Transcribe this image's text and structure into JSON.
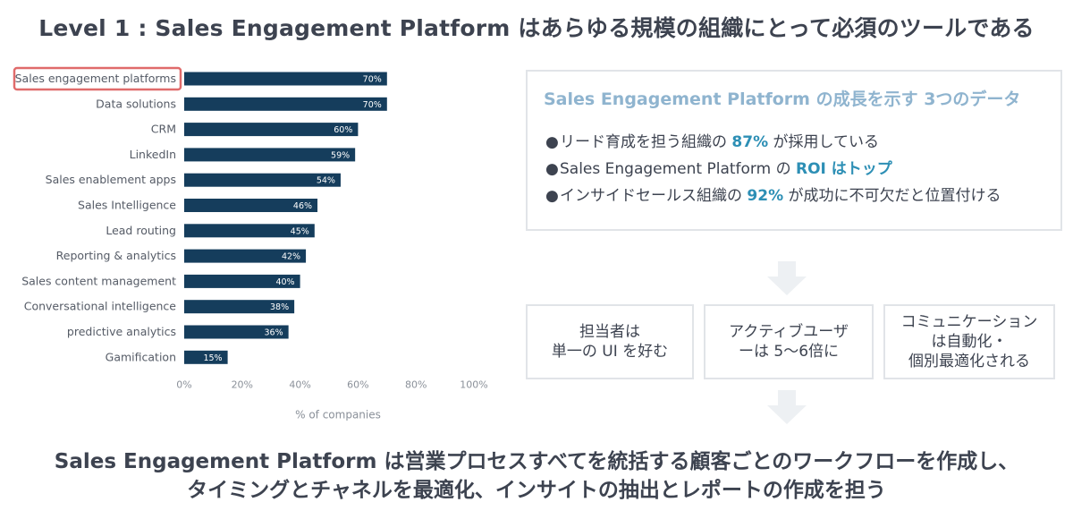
{
  "header": {
    "title": "Level 1 : Sales Engagement Platform はあらゆる規模の組織にとって必須のツールである"
  },
  "chart_data": {
    "type": "bar",
    "orientation": "horizontal",
    "categories": [
      "Sales engagement platforms",
      "Data solutions",
      "CRM",
      "LinkedIn",
      "Sales enablement apps",
      "Sales Intelligence",
      "Lead routing",
      "Reporting & analytics",
      "Sales content management",
      "Conversational intelligence",
      "predictive analytics",
      "Gamification"
    ],
    "values": [
      70,
      70,
      60,
      59,
      54,
      46,
      45,
      42,
      40,
      38,
      36,
      15
    ],
    "value_labels": [
      "70%",
      "70%",
      "60%",
      "59%",
      "54%",
      "46%",
      "45%",
      "42%",
      "40%",
      "38%",
      "36%",
      "15%"
    ],
    "xlim": [
      0,
      100
    ],
    "xticks": [
      "0%",
      "20%",
      "40%",
      "60%",
      "80%",
      "100%"
    ],
    "xlabel": "% of companies",
    "highlighted_category": "Sales engagement platforms",
    "bar_color": "#153d5c",
    "highlight_color": "#e06b6b",
    "grid": false
  },
  "stats": {
    "title": "Sales Engagement Platform の成長を示す 3つのデータ",
    "items": [
      {
        "pre": "リード育成を担う組織の ",
        "hl": "87%",
        "post": " が採用している"
      },
      {
        "pre": "Sales Engagement Platform の ",
        "hl": "ROI はトップ",
        "post": ""
      },
      {
        "pre": "インサイドセールス組織の ",
        "hl": "92%",
        "post": " が成功に不可欠だと位置付ける"
      }
    ],
    "bullet": "●",
    "accent_color": "#2d8fb5",
    "title_color": "#8fb4cf"
  },
  "benefits": [
    "担当者は\n単一の UI を好む",
    "アクティブユーザーは 5〜6倍に",
    "コミュニケーション\nは自動化・\n個別最適化される"
  ],
  "conclusion": {
    "line1": "Sales Engagement Platform は営業プロセスすべてを統括する顧客ごとのワークフローを作成し、",
    "line2": "タイミングとチャネルを最適化、インサイトの抽出とレポートの作成を担う"
  }
}
